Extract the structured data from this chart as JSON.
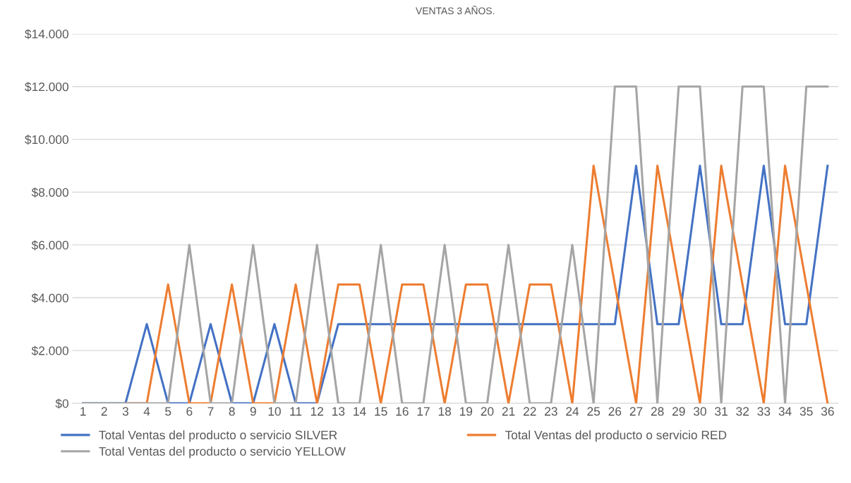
{
  "chart_data": {
    "type": "line",
    "title": "VENTAS 3 AÑOS.",
    "categories": [
      "1",
      "2",
      "3",
      "4",
      "5",
      "6",
      "7",
      "8",
      "9",
      "10",
      "11",
      "12",
      "13",
      "14",
      "15",
      "16",
      "17",
      "18",
      "19",
      "20",
      "21",
      "22",
      "23",
      "24",
      "25",
      "26",
      "27",
      "28",
      "29",
      "30",
      "31",
      "32",
      "33",
      "34",
      "35",
      "36"
    ],
    "series": [
      {
        "name": "Total Ventas del producto o servicio SILVER",
        "color": "#4472c4",
        "values": [
          0,
          0,
          0,
          3000,
          0,
          0,
          3000,
          0,
          0,
          3000,
          0,
          0,
          3000,
          3000,
          3000,
          3000,
          3000,
          3000,
          3000,
          3000,
          3000,
          3000,
          3000,
          3000,
          3000,
          3000,
          9000,
          3000,
          3000,
          9000,
          3000,
          3000,
          9000,
          3000,
          3000,
          9000
        ]
      },
      {
        "name": "Total Ventas del producto o servicio RED",
        "color": "#ed7d31",
        "values": [
          null,
          null,
          0,
          0,
          4500,
          0,
          0,
          4500,
          0,
          0,
          4500,
          0,
          4500,
          4500,
          0,
          4500,
          4500,
          0,
          4500,
          4500,
          0,
          4500,
          4500,
          0,
          9000,
          4500,
          0,
          9000,
          4500,
          0,
          9000,
          4500,
          0,
          9000,
          4500,
          0
        ]
      },
      {
        "name": "Total Ventas del producto o servicio YELLOW",
        "color": "#a5a5a5",
        "values": [
          0,
          0,
          0,
          0,
          0,
          6000,
          0,
          0,
          6000,
          0,
          0,
          6000,
          0,
          0,
          6000,
          0,
          0,
          6000,
          0,
          0,
          6000,
          0,
          0,
          6000,
          0,
          12000,
          12000,
          0,
          12000,
          12000,
          0,
          12000,
          12000,
          0,
          12000,
          12000
        ]
      }
    ],
    "ylim": [
      0,
      14000
    ],
    "yticks": [
      {
        "value": 0,
        "label": "$0"
      },
      {
        "value": 2000,
        "label": "$2.000"
      },
      {
        "value": 4000,
        "label": "$4.000"
      },
      {
        "value": 6000,
        "label": "$6.000"
      },
      {
        "value": 8000,
        "label": "$8.000"
      },
      {
        "value": 10000,
        "label": "$10.000"
      },
      {
        "value": 12000,
        "label": "$12.000"
      },
      {
        "value": 14000,
        "label": "$14.000"
      }
    ],
    "grid": "y",
    "legend": "bottom",
    "marker": "none",
    "line_style": "solid"
  }
}
